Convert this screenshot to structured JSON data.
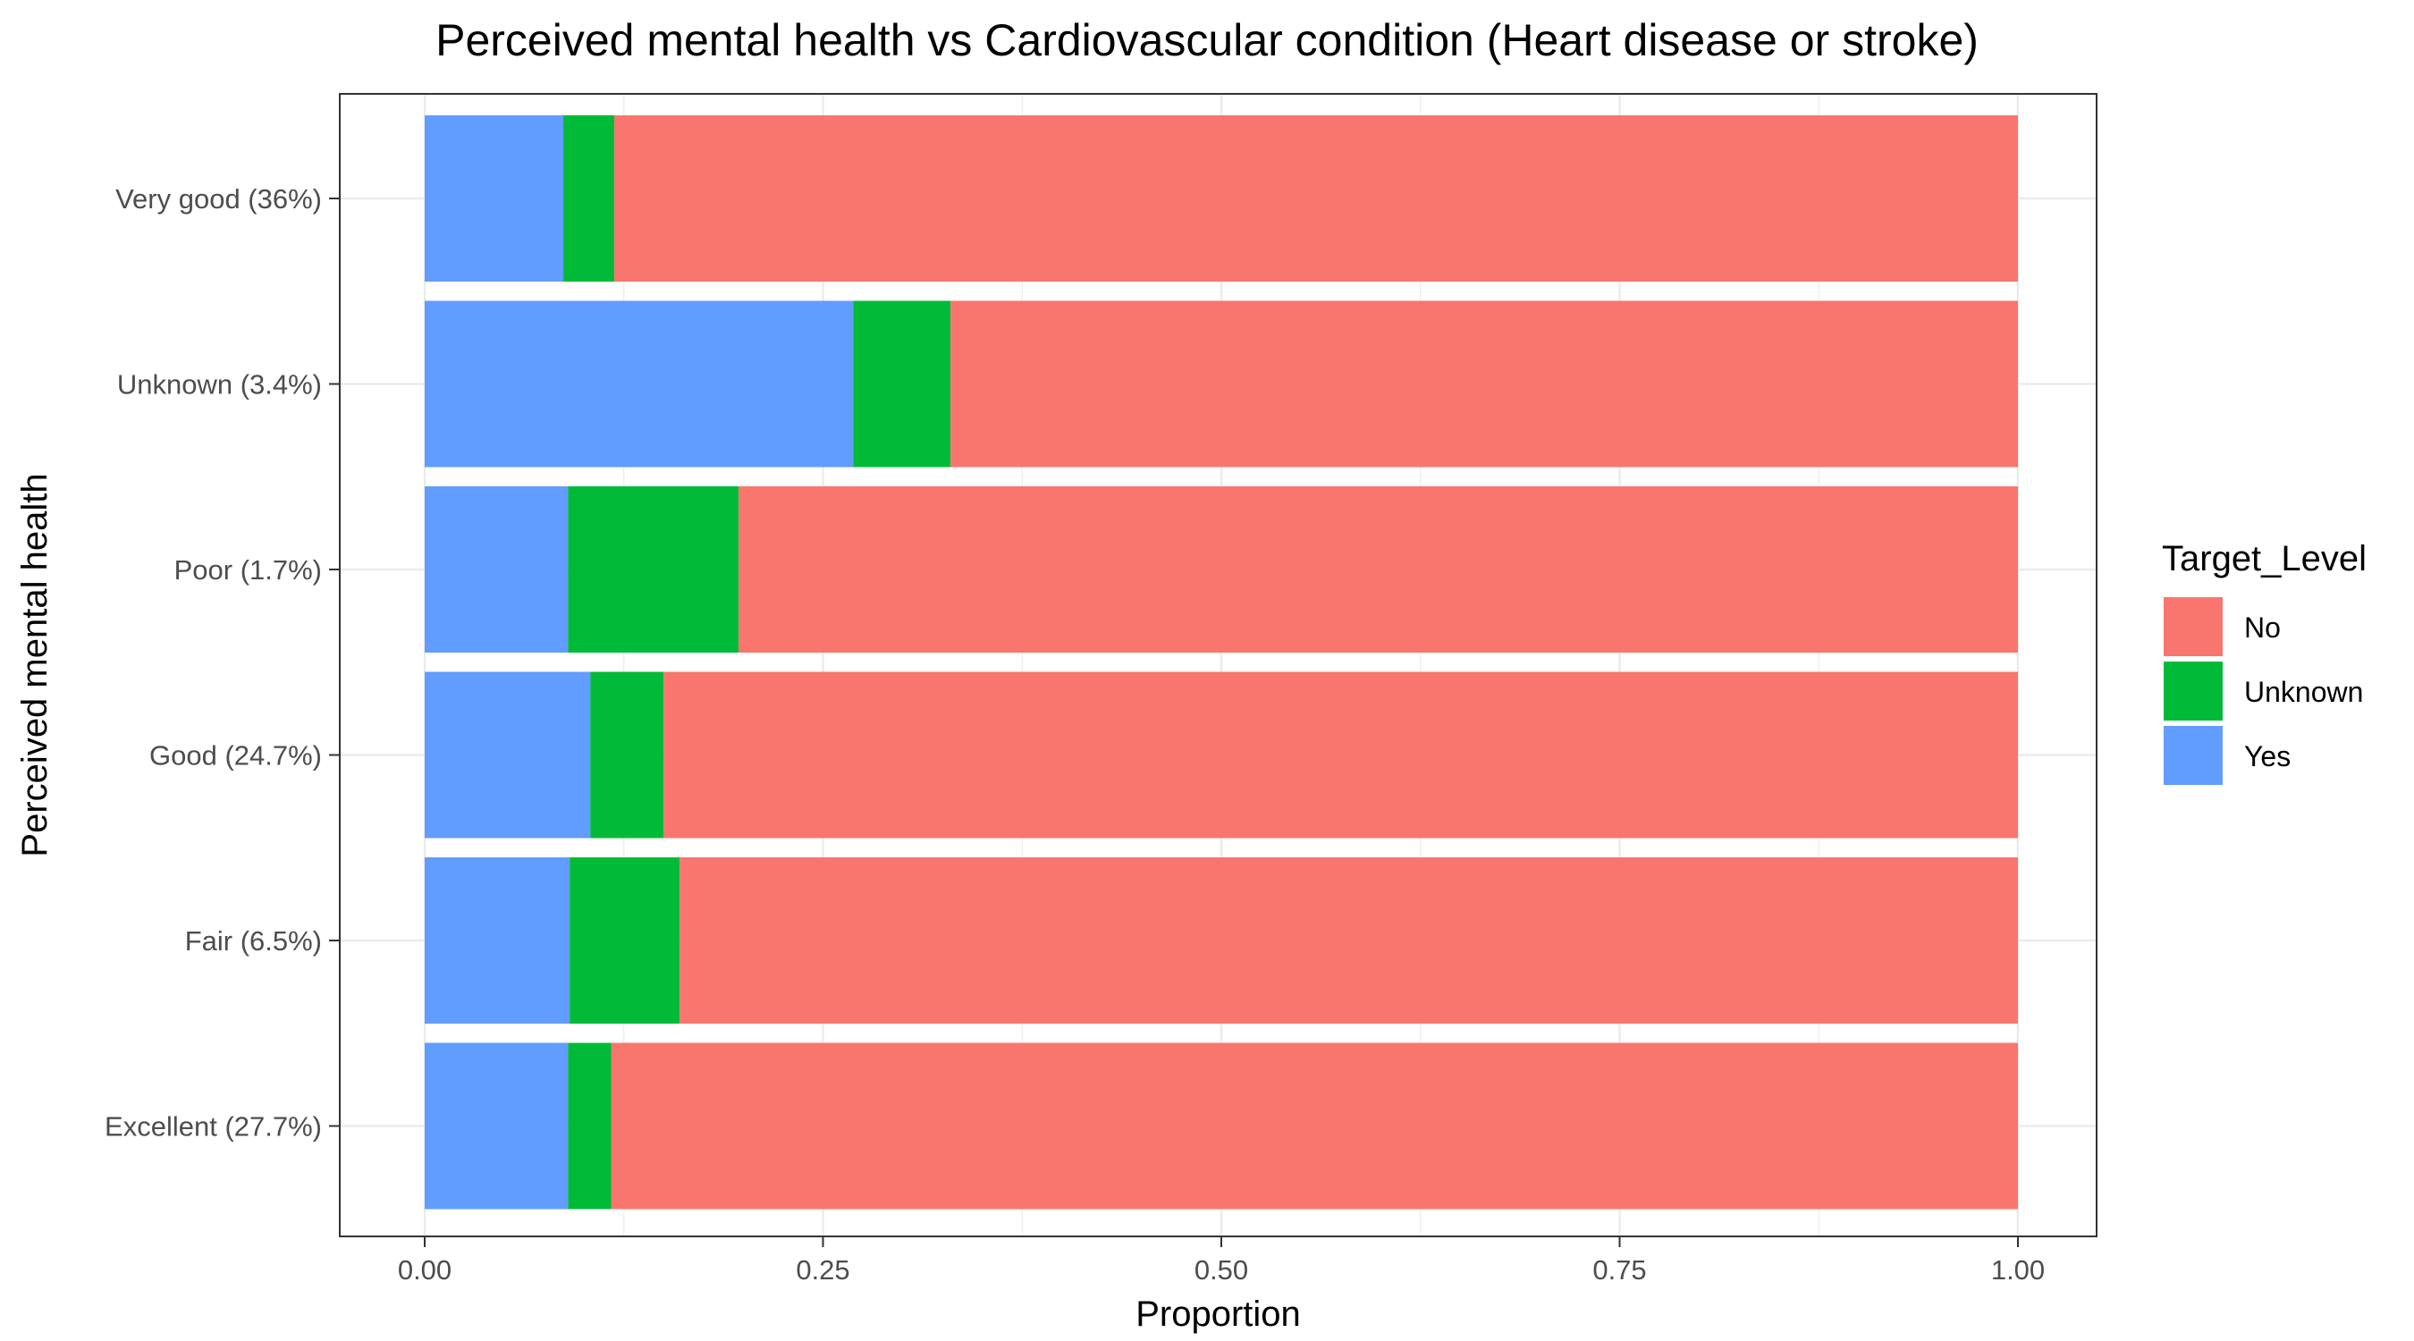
{
  "chart_data": {
    "type": "bar",
    "orientation": "horizontal",
    "stacked": true,
    "title": "Perceived mental health  vs Cardiovascular condition (Heart disease or stroke)",
    "xlabel": "Proportion",
    "ylabel": "Perceived mental health",
    "xlim": [
      0,
      1
    ],
    "x_ticks": [
      "0.00",
      "0.25",
      "0.50",
      "0.75",
      "1.00"
    ],
    "grid": true,
    "legend": {
      "title": "Target_Level",
      "placement": "right",
      "entries": [
        "No",
        "Unknown",
        "Yes"
      ]
    },
    "categories": [
      "Very good (36%)",
      "Unknown (3.4%)",
      "Poor (1.7%)",
      "Good (24.7%)",
      "Fair (6.5%)",
      "Excellent (27.7%)"
    ],
    "series": [
      {
        "name": "Yes",
        "color": "#619CFF",
        "values": [
          0.087,
          0.269,
          0.09,
          0.104,
          0.091,
          0.09
        ]
      },
      {
        "name": "Unknown",
        "color": "#00BA38",
        "values": [
          0.032,
          0.061,
          0.107,
          0.046,
          0.069,
          0.027
        ]
      },
      {
        "name": "No",
        "color": "#F8766D",
        "values": [
          0.881,
          0.67,
          0.803,
          0.85,
          0.84,
          0.883
        ]
      }
    ]
  }
}
